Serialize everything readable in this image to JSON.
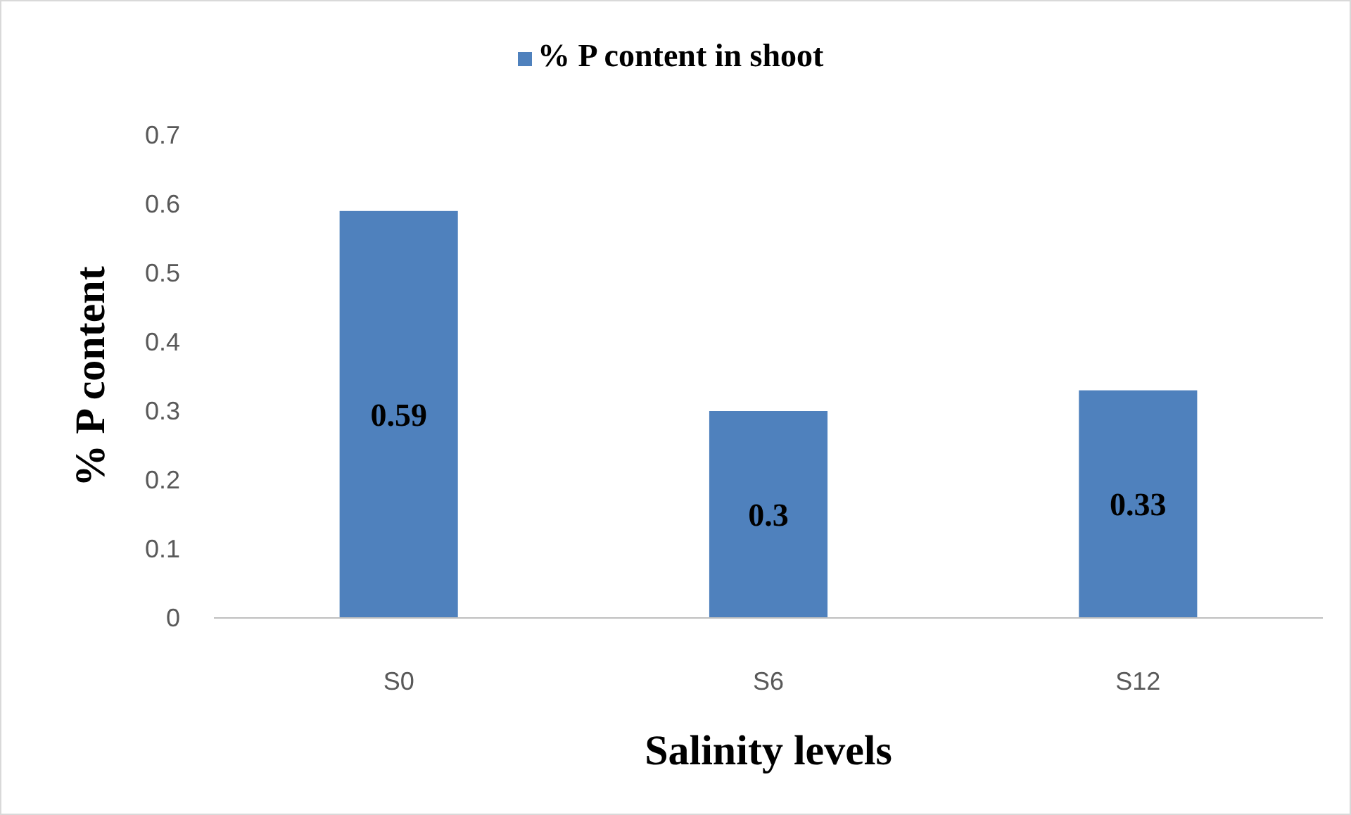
{
  "chart_data": {
    "type": "bar",
    "xlabel": "Salinity levels",
    "ylabel": "% P content",
    "categories": [
      "S0",
      "S6",
      "S12"
    ],
    "series": [
      {
        "name": "% P content in shoot",
        "color": "#4f81bd",
        "values": [
          0.59,
          0.3,
          0.33
        ]
      }
    ],
    "ylim": [
      0,
      0.7
    ],
    "yticks": [
      0,
      0.1,
      0.2,
      0.3,
      0.4,
      0.5,
      0.6,
      0.7
    ],
    "grid": false,
    "legend": "top",
    "data_labels": true
  }
}
